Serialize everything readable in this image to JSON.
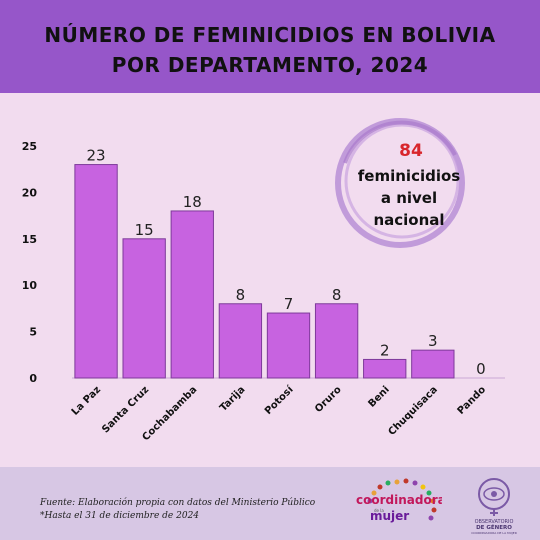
{
  "header": {
    "title_line1": "NÚMERO DE FEMINICIDIOS EN BOLIVIA",
    "title_line2": "POR DEPARTAMENTO, 2024"
  },
  "callout": {
    "number": "84",
    "line1": "feminicidios",
    "line2": "a nivel",
    "line3": "nacional"
  },
  "footer": {
    "source": "Fuente: Elaboración propia con datos del Ministerio Público",
    "note": "*Hasta el 31 de diciembre de 2024"
  },
  "logos": {
    "coordinadora_line1": "coordinadora",
    "coordinadora_small": "de la",
    "coordinadora_line2": "mujer",
    "observatorio_line1": "OBSERVATORIO",
    "observatorio_line2": "DE GÉNERO",
    "observatorio_line3": "COORDINADORA DE LA MUJER"
  },
  "colors": {
    "bar": "#c763e0",
    "bar_stroke": "#7e3a9a",
    "header_bg": "#9656c9",
    "page_bg": "#f2dcef",
    "footer_bg": "#d7c7e4",
    "accent_red": "#d8262c",
    "circle": "#b98fd6"
  },
  "chart_data": {
    "type": "bar",
    "categories": [
      "La Paz",
      "Santa Cruz",
      "Cochabamba",
      "Tarija",
      "Potosí",
      "Oruro",
      "Beni",
      "Chuquisaca",
      "Pando"
    ],
    "values": [
      23,
      15,
      18,
      8,
      7,
      8,
      2,
      3,
      0
    ],
    "ylim": [
      0,
      25
    ],
    "yticks": [
      0,
      5,
      10,
      15,
      20,
      25
    ],
    "grid": false,
    "data_labels": true
  }
}
